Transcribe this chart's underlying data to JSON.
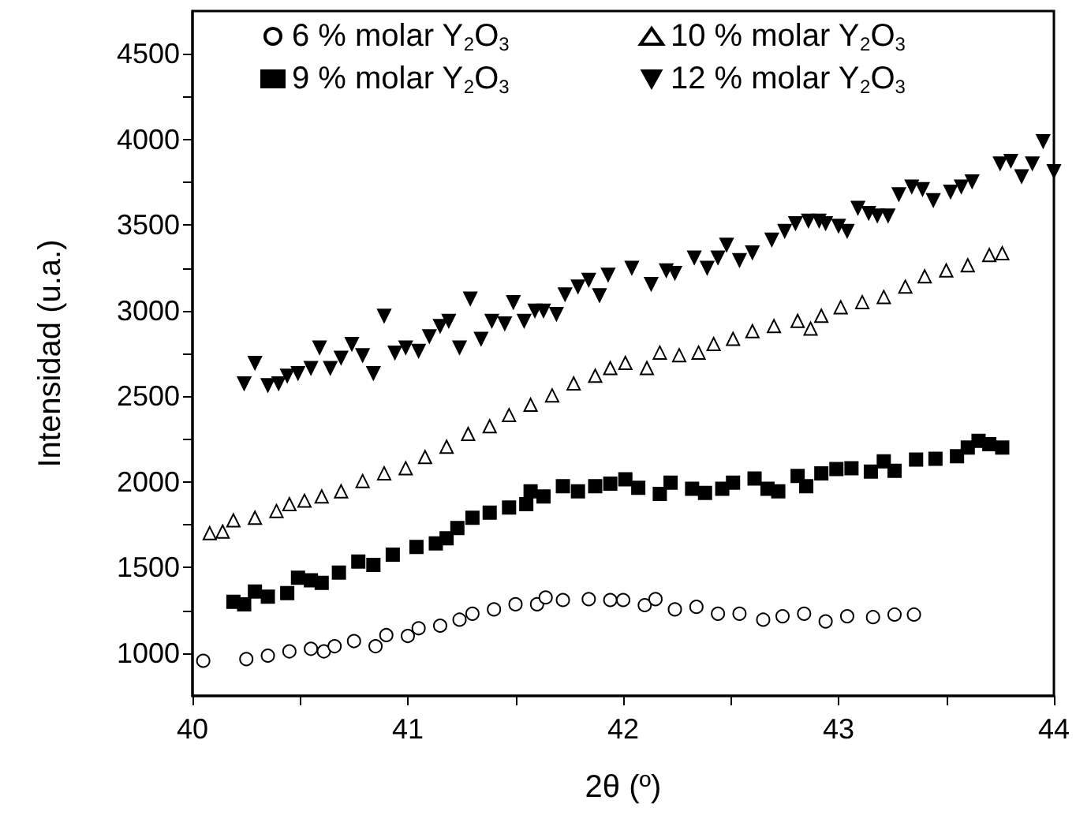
{
  "chart_data": {
    "type": "scatter",
    "xlabel": "2θ (º)",
    "ylabel": "Intensidad (u.a.)",
    "xlim": [
      40,
      44
    ],
    "xticks": [
      40,
      41,
      42,
      43,
      44
    ],
    "ylim": [
      750,
      4750
    ],
    "yticks": [
      1000,
      1500,
      2000,
      2500,
      3000,
      3500,
      4000,
      4500
    ],
    "grid": false,
    "legend": "top",
    "series": [
      {
        "name": "6 % molar Y$_{2}$O$_{3}$",
        "color": "#ffffff",
        "marker": "circle",
        "x": [
          40.05,
          40.25,
          40.35,
          40.45,
          40.55,
          40.61,
          40.66,
          40.75,
          40.85,
          40.9,
          41.0,
          41.05,
          41.15,
          41.24,
          41.3,
          41.4,
          41.5,
          41.6,
          41.64,
          41.72,
          41.84,
          41.94,
          42.0,
          42.1,
          42.15,
          42.24,
          42.34,
          42.44,
          42.54,
          42.65,
          42.74,
          42.84,
          42.94,
          43.04,
          43.16,
          43.26,
          43.35
        ],
        "values": [
          955,
          965,
          985,
          1010,
          1025,
          1010,
          1040,
          1070,
          1040,
          1105,
          1100,
          1145,
          1160,
          1195,
          1230,
          1255,
          1285,
          1285,
          1325,
          1310,
          1315,
          1310,
          1310,
          1280,
          1315,
          1255,
          1270,
          1230,
          1230,
          1195,
          1215,
          1230,
          1185,
          1215,
          1210,
          1225,
          1225
        ]
      },
      {
        "name": "9 % molar Y$_{2}$O$_{3}$",
        "color": "#000000",
        "marker": "square",
        "x": [
          40.19,
          40.24,
          40.29,
          40.35,
          40.44,
          40.49,
          40.55,
          40.6,
          40.68,
          40.77,
          40.84,
          40.93,
          41.04,
          41.13,
          41.18,
          41.23,
          41.3,
          41.38,
          41.47,
          41.55,
          41.57,
          41.63,
          41.72,
          41.79,
          41.87,
          41.94,
          42.01,
          42.07,
          42.17,
          42.22,
          42.32,
          42.38,
          42.46,
          42.51,
          42.61,
          42.67,
          42.72,
          42.81,
          42.85,
          42.92,
          42.99,
          43.06,
          43.15,
          43.21,
          43.26,
          43.36,
          43.45,
          43.55,
          43.6,
          43.65,
          43.7,
          43.76
        ],
        "values": [
          1300,
          1285,
          1360,
          1330,
          1350,
          1440,
          1425,
          1410,
          1470,
          1535,
          1515,
          1575,
          1620,
          1640,
          1670,
          1730,
          1790,
          1820,
          1850,
          1870,
          1945,
          1915,
          1975,
          1945,
          1975,
          1990,
          2015,
          1965,
          1930,
          1995,
          1960,
          1935,
          1960,
          1995,
          2020,
          1960,
          1945,
          2035,
          1975,
          2050,
          2075,
          2080,
          2060,
          2120,
          2065,
          2130,
          2135,
          2150,
          2200,
          2240,
          2220,
          2200
        ]
      },
      {
        "name": "10 % molar Y$_{2}$O$_{3}$",
        "color": "#ffffff",
        "marker": "triangle",
        "x": [
          40.08,
          40.14,
          40.19,
          40.29,
          40.39,
          40.45,
          40.52,
          40.6,
          40.69,
          40.79,
          40.89,
          40.99,
          41.08,
          41.18,
          41.28,
          41.38,
          41.47,
          41.57,
          41.67,
          41.77,
          41.87,
          41.94,
          42.01,
          42.11,
          42.17,
          42.26,
          42.35,
          42.42,
          42.51,
          42.6,
          42.7,
          42.81,
          42.87,
          42.92,
          43.01,
          43.11,
          43.21,
          43.31,
          43.4,
          43.5,
          43.6,
          43.7,
          43.76
        ],
        "values": [
          1700,
          1710,
          1775,
          1790,
          1830,
          1870,
          1890,
          1915,
          1945,
          2005,
          2050,
          2080,
          2145,
          2205,
          2280,
          2325,
          2390,
          2450,
          2505,
          2575,
          2620,
          2665,
          2695,
          2665,
          2755,
          2740,
          2755,
          2805,
          2835,
          2880,
          2910,
          2940,
          2895,
          2970,
          3020,
          3050,
          3080,
          3140,
          3200,
          3235,
          3265,
          3325,
          3335
        ]
      },
      {
        "name": "12 % molar Y$_{2}$O$_{3}$",
        "color": "#000000",
        "marker": "triangle-down",
        "x": [
          40.24,
          40.29,
          40.35,
          40.4,
          40.44,
          40.49,
          40.55,
          40.59,
          40.64,
          40.69,
          40.74,
          40.79,
          40.84,
          40.89,
          40.94,
          40.99,
          41.05,
          41.1,
          41.15,
          41.19,
          41.24,
          41.29,
          41.34,
          41.39,
          41.45,
          41.49,
          41.54,
          41.59,
          41.63,
          41.69,
          41.73,
          41.79,
          41.84,
          41.89,
          41.93,
          42.04,
          42.13,
          42.2,
          42.24,
          42.33,
          42.39,
          42.44,
          42.48,
          42.54,
          42.6,
          42.69,
          42.75,
          42.8,
          42.86,
          42.91,
          42.94,
          43.0,
          43.04,
          43.09,
          43.14,
          43.18,
          43.23,
          43.28,
          43.34,
          43.39,
          43.44,
          43.52,
          43.57,
          43.62,
          43.75,
          43.8,
          43.85,
          43.9,
          43.95,
          44.0
        ],
        "values": [
          2575,
          2695,
          2565,
          2575,
          2620,
          2635,
          2665,
          2785,
          2665,
          2725,
          2805,
          2740,
          2635,
          2970,
          2755,
          2785,
          2765,
          2850,
          2910,
          2940,
          2785,
          3070,
          2835,
          2940,
          2925,
          3050,
          2940,
          3000,
          3000,
          2980,
          3095,
          3140,
          3180,
          3090,
          3210,
          3250,
          3155,
          3235,
          3220,
          3310,
          3250,
          3310,
          3385,
          3295,
          3340,
          3415,
          3465,
          3510,
          3525,
          3525,
          3510,
          3495,
          3465,
          3600,
          3570,
          3555,
          3555,
          3680,
          3725,
          3710,
          3645,
          3695,
          3725,
          3755,
          3860,
          3875,
          3785,
          3860,
          3990,
          3815
        ]
      }
    ]
  }
}
